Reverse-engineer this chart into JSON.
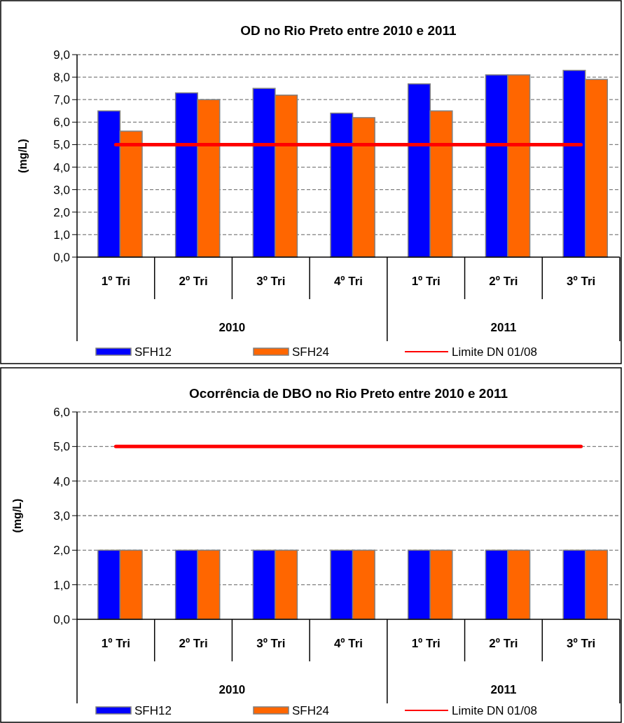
{
  "chart_data": [
    {
      "type": "bar",
      "title": "OD no  Rio  Preto entre  2010 e  2011",
      "ylabel": "(mg/L)",
      "categories": [
        "1º Tri",
        "2º Tri",
        "3º Tri",
        "4º Tri",
        "1º Tri",
        "2º Tri",
        "3º Tri"
      ],
      "annotations": [
        "2010",
        "2011"
      ],
      "series": [
        {
          "name": "SFH12",
          "color": "#0000ff",
          "values": [
            6.5,
            7.3,
            7.5,
            6.4,
            7.7,
            8.1,
            8.3
          ]
        },
        {
          "name": "SFH24",
          "color": "#ff6600",
          "values": [
            5.6,
            7.0,
            7.2,
            6.2,
            6.5,
            8.1,
            7.9
          ]
        },
        {
          "name": "Limite DN 01/08",
          "type": "line",
          "color": "#ff0000",
          "values": [
            5,
            5,
            5,
            5,
            5,
            5,
            5
          ]
        }
      ],
      "ylim": [
        0,
        9
      ],
      "yticks": [
        {
          "value": 0,
          "label": "0,0"
        },
        {
          "value": 1,
          "label": "1,0"
        },
        {
          "value": 2,
          "label": "2,0"
        },
        {
          "value": 3,
          "label": "3,0"
        },
        {
          "value": 4,
          "label": "4,0"
        },
        {
          "value": 5,
          "label": "5,0"
        },
        {
          "value": 6,
          "label": "6,0"
        },
        {
          "value": 7,
          "label": "7,0"
        },
        {
          "value": 8,
          "label": "8,0"
        },
        {
          "value": 9,
          "label": "9,0"
        }
      ],
      "grid": "y",
      "legend": "bottom"
    },
    {
      "type": "bar",
      "title": "Ocorrência de DBO no  Rio  Preto entre  2010 e  2011",
      "ylabel": "(mg/L)",
      "categories": [
        "1º Tri",
        "2º Tri",
        "3º Tri",
        "4º Tri",
        "1º Tri",
        "2º Tri",
        "3º Tri"
      ],
      "annotations": [
        "2010",
        "2011"
      ],
      "series": [
        {
          "name": "SFH12",
          "color": "#0000ff",
          "values": [
            2,
            2,
            2,
            2,
            2,
            2,
            2
          ]
        },
        {
          "name": "SFH24",
          "color": "#ff6600",
          "values": [
            2,
            2,
            2,
            2,
            2,
            2,
            2
          ]
        },
        {
          "name": "Limite DN 01/08",
          "type": "line",
          "color": "#ff0000",
          "values": [
            5,
            5,
            5,
            5,
            5,
            5,
            5
          ]
        }
      ],
      "ylim": [
        0,
        6
      ],
      "yticks": [
        {
          "value": 0,
          "label": "0,0"
        },
        {
          "value": 1,
          "label": "1,0"
        },
        {
          "value": 2,
          "label": "2,0"
        },
        {
          "value": 3,
          "label": "3,0"
        },
        {
          "value": 4,
          "label": "4,0"
        },
        {
          "value": 5,
          "label": "5,0"
        },
        {
          "value": 6,
          "label": "6,0"
        }
      ],
      "grid": "y",
      "legend": "bottom"
    }
  ]
}
